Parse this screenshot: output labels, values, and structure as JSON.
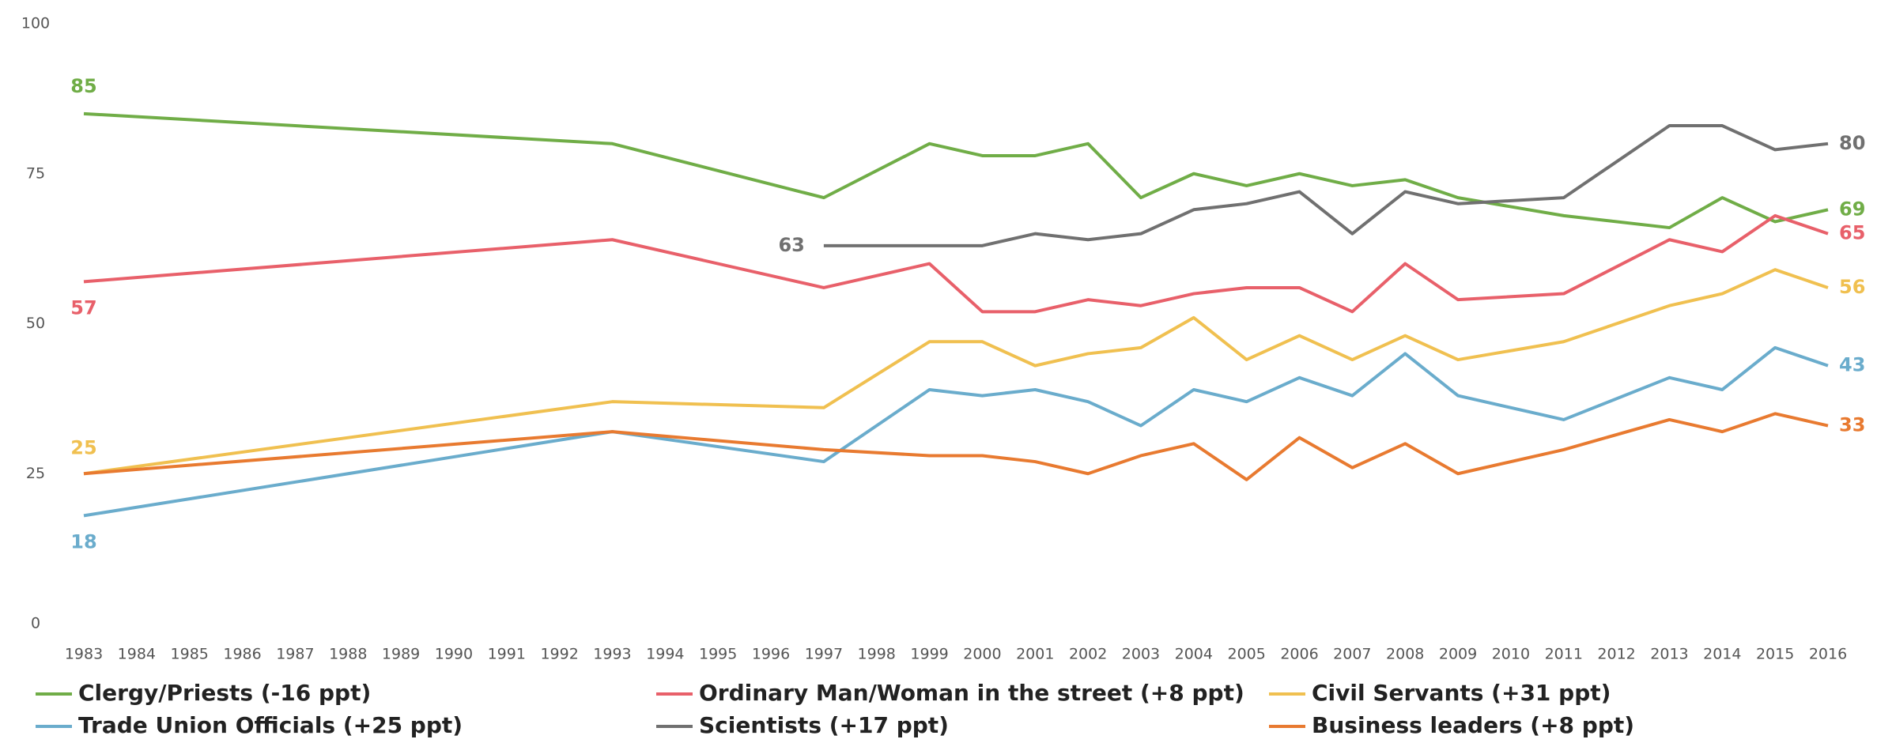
{
  "chart_data": {
    "type": "line",
    "x": [
      1983,
      1993,
      1997,
      1999,
      2000,
      2001,
      2002,
      2003,
      2004,
      2005,
      2006,
      2007,
      2008,
      2009,
      2011,
      2013,
      2014,
      2015,
      2016
    ],
    "xlim": [
      1983,
      2016
    ],
    "xticks": [
      1983,
      1984,
      1985,
      1986,
      1987,
      1988,
      1989,
      1990,
      1991,
      1992,
      1993,
      1994,
      1995,
      1996,
      1997,
      1998,
      1999,
      2000,
      2001,
      2002,
      2003,
      2004,
      2005,
      2006,
      2007,
      2008,
      2009,
      2010,
      2011,
      2012,
      2013,
      2014,
      2015,
      2016
    ],
    "ylim": [
      0,
      100
    ],
    "yticks": [
      0,
      25,
      50,
      75,
      100
    ],
    "grid": false,
    "series": [
      {
        "name": "Clergy/Priests (-16 ppt)",
        "color": "#70ad47",
        "values": [
          85,
          80,
          71,
          80,
          78,
          78,
          80,
          71,
          75,
          73,
          75,
          73,
          74,
          71,
          68,
          66,
          71,
          67,
          69
        ]
      },
      {
        "name": "Ordinary Man/Woman in the street (+8 ppt)",
        "color": "#e8606a",
        "values": [
          57,
          64,
          56,
          60,
          52,
          52,
          54,
          53,
          55,
          56,
          56,
          52,
          60,
          54,
          55,
          64,
          62,
          68,
          65
        ]
      },
      {
        "name": "Civil Servants (+31 ppt)",
        "color": "#f0c050",
        "values": [
          25,
          37,
          36,
          47,
          47,
          43,
          45,
          46,
          51,
          44,
          48,
          44,
          48,
          44,
          47,
          53,
          55,
          59,
          56
        ]
      },
      {
        "name": "Trade Union Officials (+25 ppt)",
        "color": "#6aaccc",
        "values": [
          18,
          32,
          27,
          39,
          38,
          39,
          37,
          33,
          39,
          37,
          41,
          38,
          45,
          38,
          34,
          41,
          39,
          46,
          43
        ]
      },
      {
        "name": "Scientists (+17 ppt)",
        "color": "#707070",
        "values": [
          null,
          null,
          63,
          63,
          63,
          65,
          64,
          65,
          69,
          70,
          72,
          65,
          72,
          70,
          71,
          83,
          83,
          79,
          80
        ]
      },
      {
        "name": "Business leaders (+8 ppt)",
        "color": "#e87a30",
        "values": [
          25,
          32,
          29,
          28,
          28,
          27,
          25,
          28,
          30,
          24,
          31,
          26,
          30,
          25,
          29,
          34,
          32,
          35,
          33
        ]
      }
    ]
  }
}
